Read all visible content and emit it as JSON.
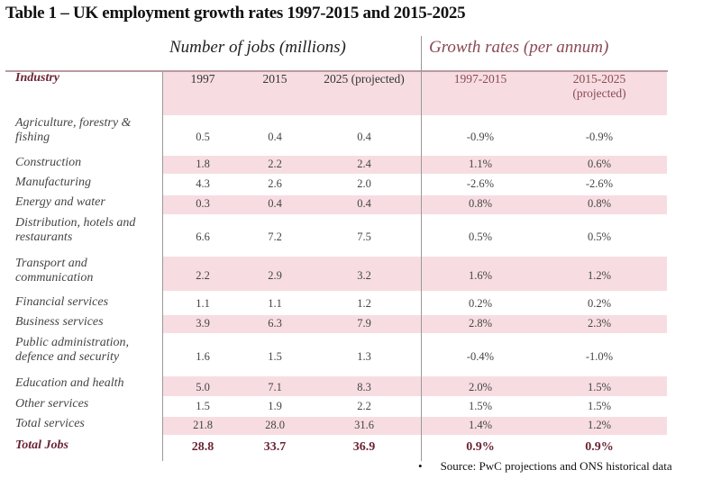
{
  "title": "Table 1 – UK employment growth rates 1997-2015 and 2015-2025",
  "groups": {
    "jobs": "Number of jobs (millions)",
    "growth": "Growth rates (per annum)"
  },
  "headers": {
    "industry": "Industry",
    "y1997": "1997",
    "y2015": "2015",
    "y2025": "2025 (projected)",
    "g1": "1997-2015",
    "g2_line1": "2015-2025",
    "g2_line2": "(projected)"
  },
  "rows": [
    {
      "industry": "Agriculture, forestry & fishing",
      "y1997": "0.5",
      "y2015": "0.4",
      "y2025": "0.4",
      "g1": "-0.9%",
      "g2": "-0.9%"
    },
    {
      "industry": "Construction",
      "y1997": "1.8",
      "y2015": "2.2",
      "y2025": "2.4",
      "g1": "1.1%",
      "g2": "0.6%"
    },
    {
      "industry": "Manufacturing",
      "y1997": "4.3",
      "y2015": "2.6",
      "y2025": "2.0",
      "g1": "-2.6%",
      "g2": "-2.6%"
    },
    {
      "industry": "Energy and water",
      "y1997": "0.3",
      "y2015": "0.4",
      "y2025": "0.4",
      "g1": "0.8%",
      "g2": "0.8%"
    },
    {
      "industry": "Distribution, hotels and restaurants",
      "y1997": "6.6",
      "y2015": "7.2",
      "y2025": "7.5",
      "g1": "0.5%",
      "g2": "0.5%"
    },
    {
      "industry": "Transport and communication",
      "y1997": "2.2",
      "y2015": "2.9",
      "y2025": "3.2",
      "g1": "1.6%",
      "g2": "1.2%"
    },
    {
      "industry": "Financial services",
      "y1997": "1.1",
      "y2015": "1.1",
      "y2025": "1.2",
      "g1": "0.2%",
      "g2": "0.2%"
    },
    {
      "industry": "Business services",
      "y1997": "3.9",
      "y2015": "6.3",
      "y2025": "7.9",
      "g1": "2.8%",
      "g2": "2.3%"
    },
    {
      "industry": "Public administration, defence and security",
      "y1997": "1.6",
      "y2015": "1.5",
      "y2025": "1.3",
      "g1": "-0.4%",
      "g2": "-1.0%"
    },
    {
      "industry": "Education and health",
      "y1997": "5.0",
      "y2015": "7.1",
      "y2025": "8.3",
      "g1": "2.0%",
      "g2": "1.5%"
    },
    {
      "industry": "Other services",
      "y1997": "1.5",
      "y2015": "1.9",
      "y2025": "2.2",
      "g1": "1.5%",
      "g2": "1.5%"
    },
    {
      "industry": "Total services",
      "y1997": "21.8",
      "y2015": "28.0",
      "y2025": "31.6",
      "g1": "1.4%",
      "g2": "1.2%"
    },
    {
      "industry": "Total Jobs",
      "y1997": "28.8",
      "y2015": "33.7",
      "y2025": "36.9",
      "g1": "0.9%",
      "g2": "0.9%"
    }
  ],
  "source": "Source: PwC projections and ONS historical data",
  "colors": {
    "band": "#f7dde1",
    "accent": "#6b2433"
  }
}
